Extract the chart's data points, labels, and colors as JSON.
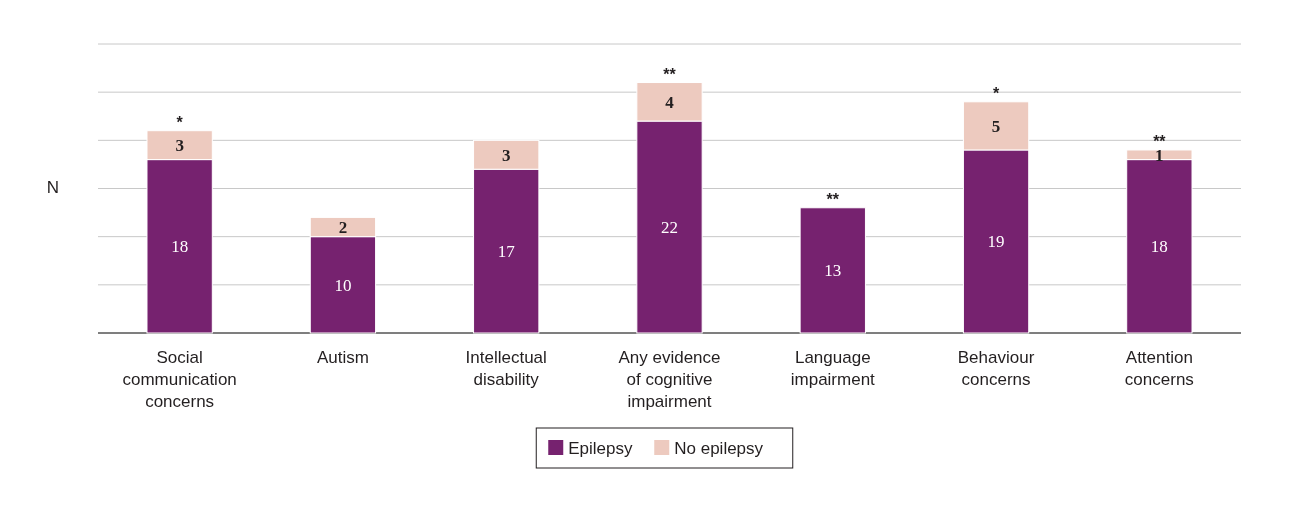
{
  "chart_data": {
    "type": "bar",
    "stacked": true,
    "ylabel": "N",
    "categories": [
      "Social communication concerns",
      "Autism",
      "Intellectual disability",
      "Any evidence of cognitive impairment",
      "Language impairment",
      "Behaviour concerns",
      "Attention concerns"
    ],
    "series": [
      {
        "name": "Epilepsy",
        "color": "#76226f",
        "values": [
          18,
          10,
          17,
          22,
          13,
          19,
          18
        ]
      },
      {
        "name": "No epilepsy",
        "color": "#edcabf",
        "values": [
          3,
          2,
          3,
          4,
          null,
          5,
          1
        ]
      }
    ],
    "ylim": [
      0,
      30
    ],
    "yticks": [
      {
        "value": 0,
        "label": null
      },
      {
        "value": 5,
        "label": null
      },
      {
        "value": 10,
        "label": null
      },
      {
        "value": 15,
        "label": null
      },
      {
        "value": 20,
        "label": null
      },
      {
        "value": 25,
        "label": null
      },
      {
        "value": 30,
        "label": null
      }
    ],
    "grid": "y",
    "data_labels": true,
    "legend": "bottom",
    "tick_labels": "x",
    "annotations": [
      {
        "text": "*",
        "x": "Social communication concerns",
        "y": 21
      },
      {
        "text": "**",
        "x": "Any evidence of cognitive impairment",
        "y": 26
      },
      {
        "text": "**",
        "x": "Language impairment",
        "y": 13
      },
      {
        "text": "*",
        "x": "Behaviour concerns",
        "y": 24
      },
      {
        "text": "**",
        "x": "Attention concerns",
        "y": 19
      }
    ]
  }
}
